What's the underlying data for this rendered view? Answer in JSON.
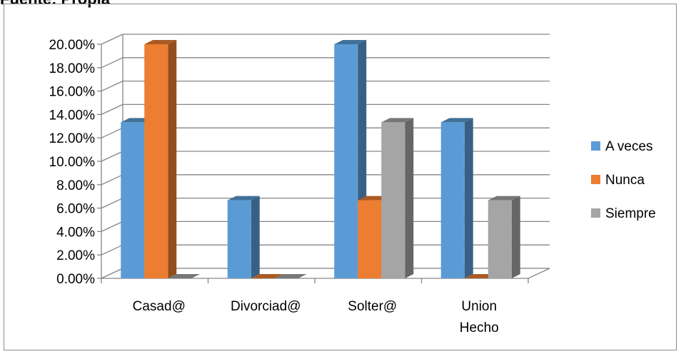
{
  "caption": "Fuente: Propia",
  "chart_data": {
    "type": "bar",
    "categories": [
      [
        "Casad@"
      ],
      [
        "Divorciad@"
      ],
      [
        "Solter@"
      ],
      [
        "Union",
        "Hecho"
      ]
    ],
    "series": [
      {
        "name": "A veces",
        "values": [
          13.33,
          6.67,
          20.0,
          13.33
        ],
        "color": "#5b9bd5"
      },
      {
        "name": "Nunca",
        "values": [
          20.0,
          0.0,
          6.67,
          0.0
        ],
        "color": "#ed7d31"
      },
      {
        "name": "Siempre",
        "values": [
          0.0,
          0.0,
          13.33,
          6.67
        ],
        "color": "#a5a5a5"
      }
    ],
    "yticks": [
      "0.00%",
      "2.00%",
      "4.00%",
      "6.00%",
      "8.00%",
      "10.00%",
      "12.00%",
      "14.00%",
      "16.00%",
      "18.00%",
      "20.00%"
    ],
    "ylim": [
      0,
      20
    ],
    "grid": true,
    "legend": "right",
    "three_d": true
  }
}
